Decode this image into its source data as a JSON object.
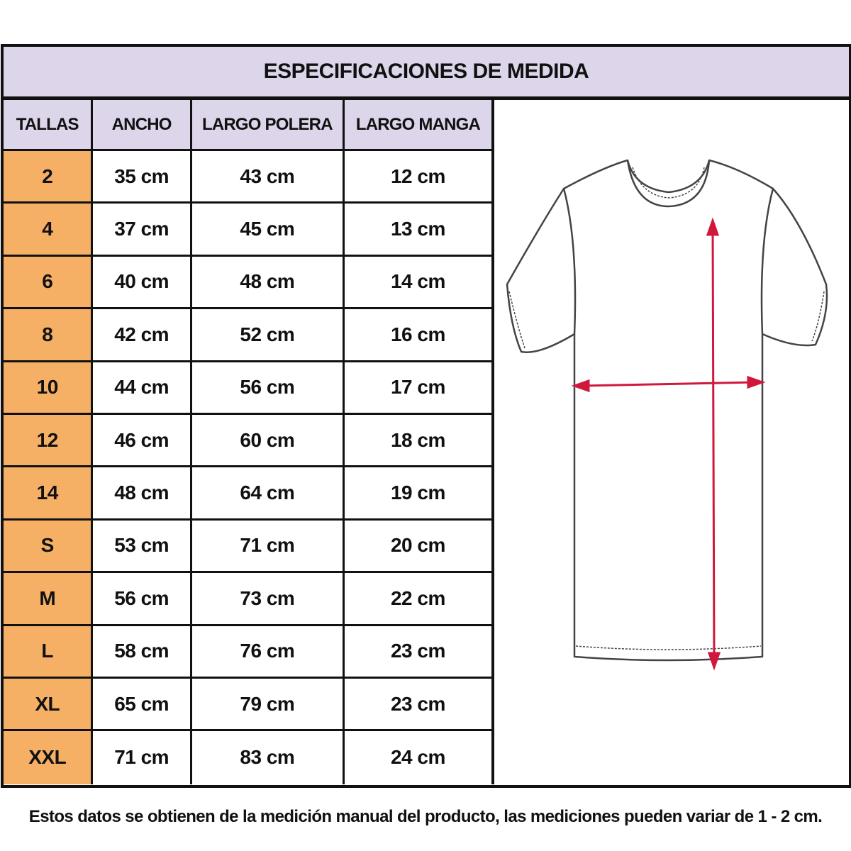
{
  "title": "ESPECIFICACIONES DE MEDIDA",
  "headers": [
    "TALLAS",
    "ANCHO",
    "LARGO POLERA",
    "LARGO MANGA"
  ],
  "rows": [
    [
      "2",
      "35 cm",
      "43 cm",
      "12 cm"
    ],
    [
      "4",
      "37 cm",
      "45 cm",
      "13 cm"
    ],
    [
      "6",
      "40 cm",
      "48 cm",
      "14 cm"
    ],
    [
      "8",
      "42 cm",
      "52 cm",
      "16 cm"
    ],
    [
      "10",
      "44 cm",
      "56 cm",
      "17 cm"
    ],
    [
      "12",
      "46 cm",
      "60 cm",
      "18 cm"
    ],
    [
      "14",
      "48 cm",
      "64 cm",
      "19 cm"
    ],
    [
      "S",
      "53 cm",
      "71 cm",
      "20 cm"
    ],
    [
      "M",
      "56 cm",
      "73 cm",
      "22 cm"
    ],
    [
      "L",
      "58 cm",
      "76 cm",
      "23 cm"
    ],
    [
      "XL",
      "65 cm",
      "79 cm",
      "23 cm"
    ],
    [
      "XXL",
      "71 cm",
      "83 cm",
      "24 cm"
    ]
  ],
  "footer_note": "Estos datos se obtienen de la medición manual del producto, las mediciones pueden variar de 1 - 2 cm.",
  "colors": {
    "header_bg": "#ddd5ea",
    "size_bg": "#f5b066",
    "arrow": "#d0173c"
  },
  "illustration": "t-shirt-measurement-diagram"
}
